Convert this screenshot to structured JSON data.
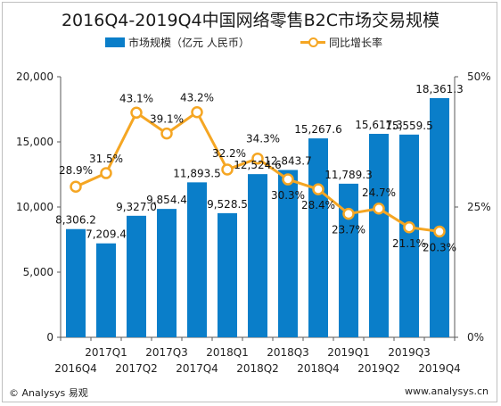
{
  "title": "2016Q4-2019Q4中国网络零售B2C市场交易规模",
  "legend": {
    "bar": "市场规模（亿元 人民币）",
    "line": "同比增长率"
  },
  "footer": {
    "left": "© Analysys 易观",
    "right": "www.analysys.cn"
  },
  "colors": {
    "bar": "#0a7ec9",
    "line": "#f5a623"
  },
  "chart_data": {
    "type": "bar",
    "categories": [
      "2016Q4",
      "2017Q1",
      "2017Q2",
      "2017Q3",
      "2017Q4",
      "2018Q1",
      "2018Q2",
      "2018Q3",
      "2018Q4",
      "2019Q1",
      "2019Q2",
      "2019Q3",
      "2019Q4"
    ],
    "series": [
      {
        "name": "市场规模（亿元 人民币）",
        "type": "bar",
        "axis": "left",
        "values": [
          8306.2,
          7209.4,
          9327.0,
          9854.4,
          11893.5,
          9528.5,
          12524.6,
          12843.7,
          15267.6,
          11789.3,
          15617.3,
          15559.5,
          18361.3
        ],
        "labels": [
          "8,306.2",
          "7,209.4",
          "9,327.0",
          "9,854.4",
          "11,893.5",
          "9,528.5",
          "12,524.6",
          "12,843.7",
          "15,267.6",
          "11,789.3",
          "15,617.3",
          "15,559.5",
          "18,361.3"
        ]
      },
      {
        "name": "同比增长率",
        "type": "line",
        "axis": "right",
        "values": [
          28.9,
          31.5,
          43.1,
          39.1,
          43.2,
          32.2,
          34.3,
          30.3,
          28.4,
          23.7,
          24.7,
          21.1,
          20.3
        ],
        "labels": [
          "28.9%",
          "31.5%",
          "43.1%",
          "39.1%",
          "43.2%",
          "32.2%",
          "34.3%",
          "30.3%",
          "28.4%",
          "23.7%",
          "24.7%",
          "21.1%",
          "20.3%"
        ]
      }
    ],
    "y_left": {
      "ylim": [
        0,
        20000
      ],
      "ticks": [
        "0",
        "5,000",
        "10,000",
        "15,000",
        "20,000"
      ]
    },
    "y_right": {
      "ylim": [
        0,
        50
      ],
      "ticks": [
        "0%",
        "25%",
        "50%"
      ]
    },
    "legend_position": "top",
    "grid": false
  }
}
